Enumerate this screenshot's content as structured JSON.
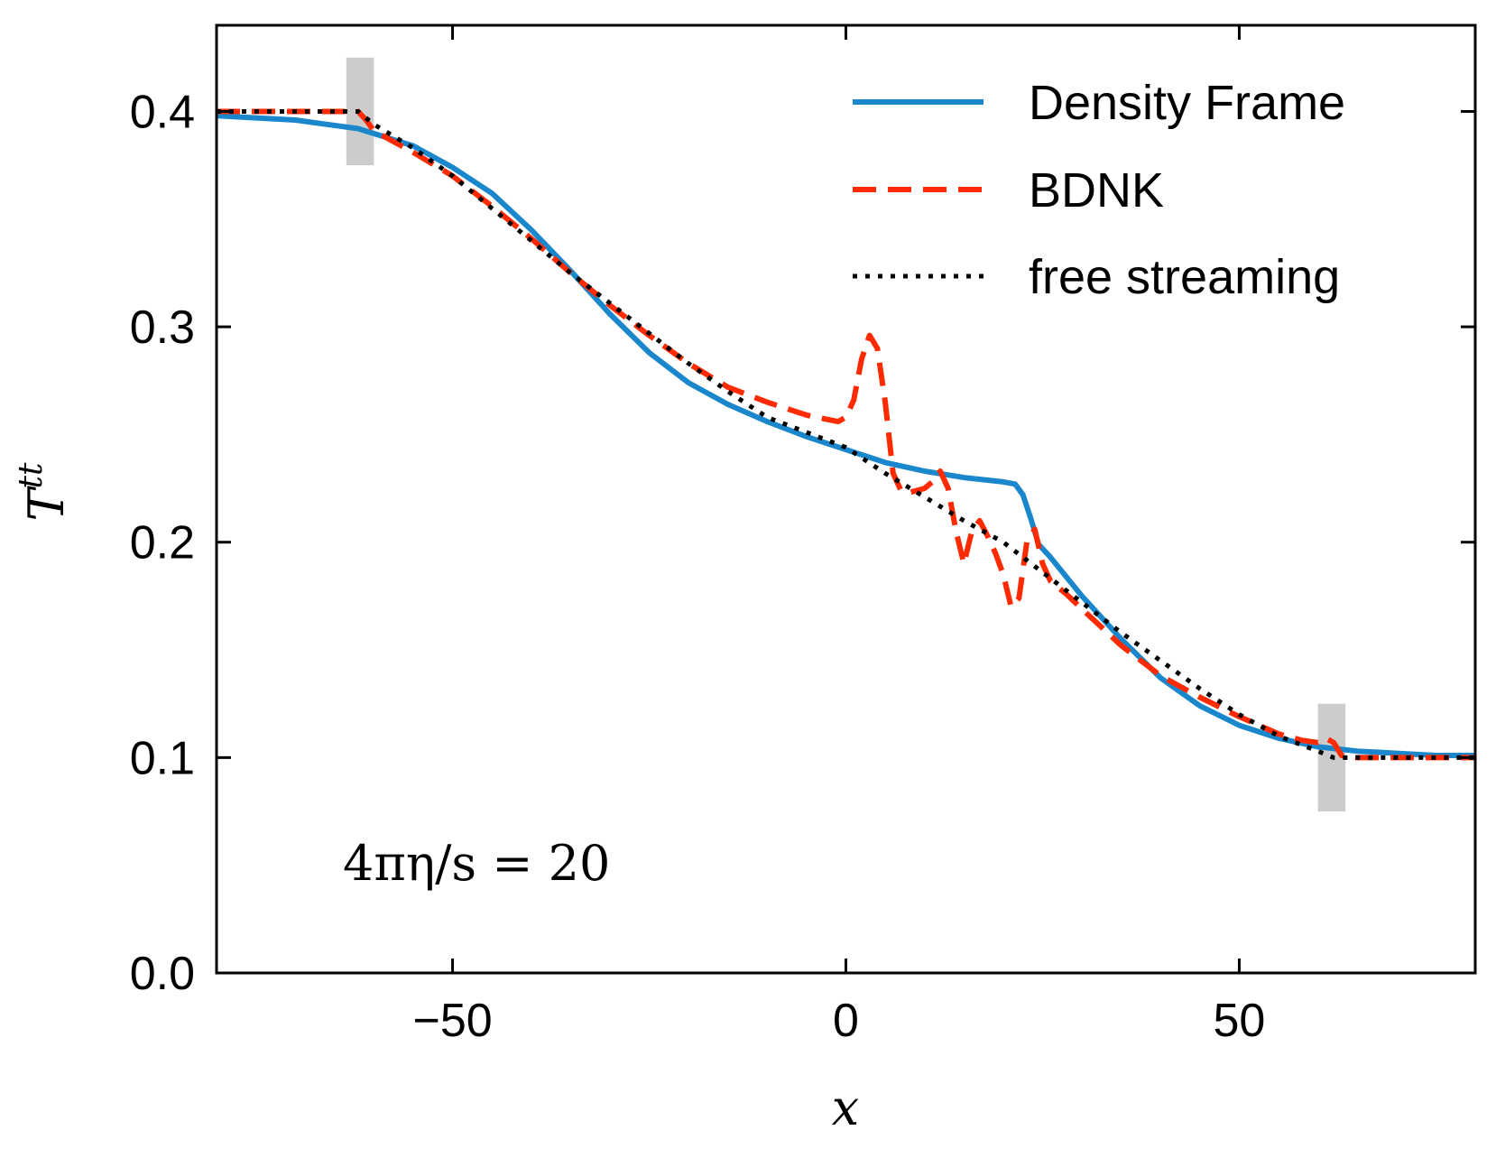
{
  "chart_data": {
    "type": "line",
    "title": "",
    "xlabel": "x",
    "ylabel_base": "T",
    "ylabel_sup": "tt",
    "xlim": [
      -80,
      80
    ],
    "ylim": [
      0.0,
      0.44
    ],
    "xticks": [
      -50,
      0,
      50
    ],
    "xtick_labels": [
      "−50",
      "0",
      "50"
    ],
    "yticks": [
      0.0,
      0.1,
      0.2,
      0.3,
      0.4
    ],
    "ytick_labels": [
      "0.0",
      "0.1",
      "0.2",
      "0.3",
      "0.4"
    ],
    "grid": false,
    "legend_position": "top-right",
    "annotation": "4πη/s = 20",
    "shaded_regions": [
      {
        "x": [
          -63.5,
          -60.0
        ],
        "y": [
          0.375,
          0.425
        ],
        "color": "#cccccc"
      },
      {
        "x": [
          60.0,
          63.5
        ],
        "y": [
          0.075,
          0.125
        ],
        "color": "#cccccc"
      }
    ],
    "series": [
      {
        "name": "Density Frame",
        "color": "#1a87cc",
        "style": "solid",
        "x": [
          -80,
          -70,
          -62,
          -55,
          -50,
          -45,
          -40,
          -35,
          -30,
          -25,
          -20,
          -15,
          -10,
          -5,
          0,
          5,
          10,
          15,
          20,
          21.5,
          22.5,
          23.5,
          24.5,
          26,
          28,
          30,
          35,
          40,
          45,
          50,
          55,
          60,
          65,
          70,
          75,
          80
        ],
        "values": [
          0.398,
          0.396,
          0.392,
          0.384,
          0.374,
          0.362,
          0.345,
          0.326,
          0.306,
          0.288,
          0.274,
          0.264,
          0.256,
          0.249,
          0.243,
          0.237,
          0.233,
          0.23,
          0.228,
          0.227,
          0.222,
          0.211,
          0.199,
          0.193,
          0.184,
          0.175,
          0.155,
          0.137,
          0.124,
          0.115,
          0.109,
          0.105,
          0.103,
          0.102,
          0.101,
          0.101
        ]
      },
      {
        "name": "BDNK",
        "color": "#ff2a00",
        "style": "dashed",
        "x": [
          -80,
          -62,
          -61,
          -60,
          -58,
          -55,
          -50,
          -45,
          -40,
          -35,
          -30,
          -25,
          -20,
          -15,
          -10,
          -5,
          -1,
          0,
          1,
          2,
          3,
          4,
          5,
          6,
          7,
          8,
          10,
          11,
          12,
          13,
          14,
          15,
          16,
          17,
          18,
          19,
          20,
          21,
          22,
          23,
          24,
          25,
          26,
          28,
          30,
          35,
          40,
          45,
          50,
          55,
          58,
          60,
          61,
          62,
          63,
          65,
          80
        ],
        "values": [
          0.4,
          0.4,
          0.396,
          0.391,
          0.387,
          0.381,
          0.37,
          0.356,
          0.341,
          0.325,
          0.31,
          0.296,
          0.283,
          0.272,
          0.265,
          0.259,
          0.256,
          0.258,
          0.266,
          0.285,
          0.296,
          0.29,
          0.265,
          0.232,
          0.224,
          0.223,
          0.225,
          0.228,
          0.233,
          0.225,
          0.205,
          0.19,
          0.205,
          0.21,
          0.203,
          0.195,
          0.185,
          0.17,
          0.174,
          0.2,
          0.206,
          0.19,
          0.182,
          0.176,
          0.169,
          0.152,
          0.138,
          0.128,
          0.119,
          0.111,
          0.108,
          0.107,
          0.109,
          0.107,
          0.101,
          0.1,
          0.1
        ]
      },
      {
        "name": "free streaming",
        "color": "#000000",
        "style": "dotted",
        "x": [
          -80,
          -62,
          -60,
          -55,
          -50,
          -45,
          -40,
          -35,
          -30,
          -25,
          -20,
          -15,
          -10,
          -5,
          0,
          5,
          10,
          15,
          20,
          25,
          30,
          35,
          40,
          45,
          50,
          55,
          60,
          62,
          65,
          80
        ],
        "values": [
          0.4,
          0.4,
          0.394,
          0.383,
          0.37,
          0.355,
          0.34,
          0.325,
          0.311,
          0.297,
          0.283,
          0.27,
          0.258,
          0.251,
          0.244,
          0.232,
          0.221,
          0.21,
          0.2,
          0.186,
          0.172,
          0.158,
          0.145,
          0.132,
          0.12,
          0.11,
          0.103,
          0.1,
          0.1,
          0.1
        ]
      }
    ]
  }
}
